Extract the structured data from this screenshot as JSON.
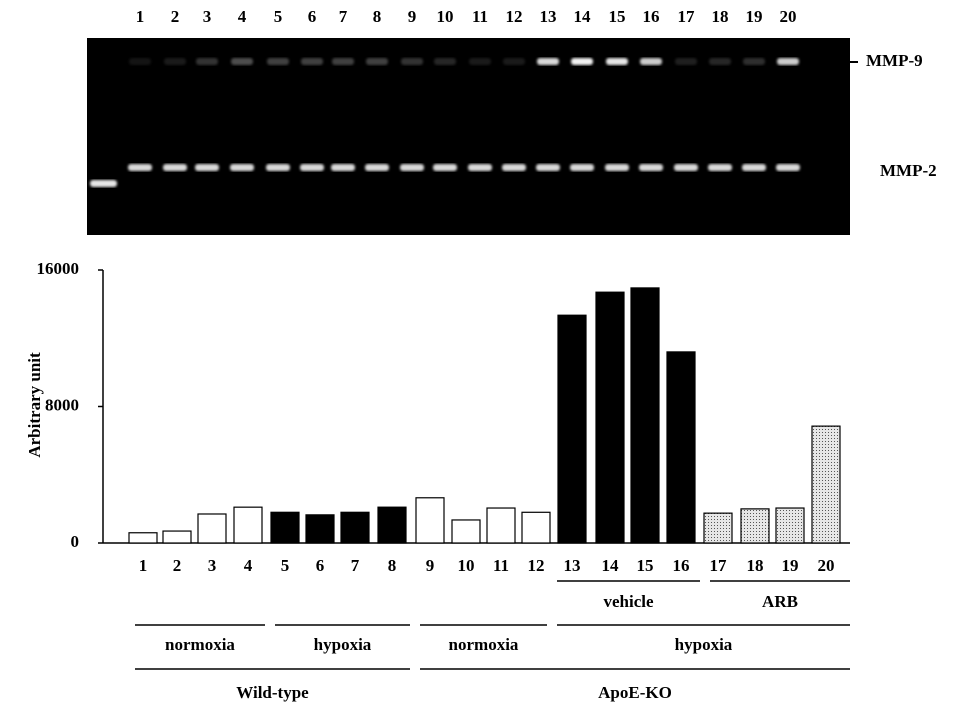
{
  "gel": {
    "lanes": [
      "1",
      "2",
      "3",
      "4",
      "5",
      "6",
      "7",
      "8",
      "9",
      "10",
      "11",
      "12",
      "13",
      "14",
      "15",
      "16",
      "17",
      "18",
      "19",
      "20"
    ],
    "bands": [
      "MMP-9",
      "MMP-2"
    ]
  },
  "chart_data": {
    "type": "bar",
    "y_label": "Arbitrary unit",
    "categories": [
      "1",
      "2",
      "3",
      "4",
      "5",
      "6",
      "7",
      "8",
      "9",
      "10",
      "11",
      "12",
      "13",
      "14",
      "15",
      "16",
      "17",
      "18",
      "19",
      "20"
    ],
    "values": [
      600,
      700,
      1700,
      2100,
      1800,
      1650,
      1800,
      2100,
      2650,
      1350,
      2050,
      1800,
      13350,
      14700,
      14950,
      11200,
      1750,
      2000,
      2050,
      6850
    ],
    "fills": [
      "open",
      "open",
      "open",
      "open",
      "solid",
      "solid",
      "solid",
      "solid",
      "open",
      "open",
      "open",
      "open",
      "solid",
      "solid",
      "solid",
      "solid",
      "dotted",
      "dotted",
      "dotted",
      "dotted"
    ],
    "ylim": [
      0,
      16000
    ],
    "yticks": [
      0,
      8000,
      16000
    ],
    "grid": false,
    "group_rows": [
      [
        "vehicle",
        "ARB"
      ],
      [
        "normoxia",
        "hypoxia",
        "normoxia",
        "hypoxia"
      ],
      [
        "Wild-type",
        "ApoE-KO"
      ]
    ]
  }
}
